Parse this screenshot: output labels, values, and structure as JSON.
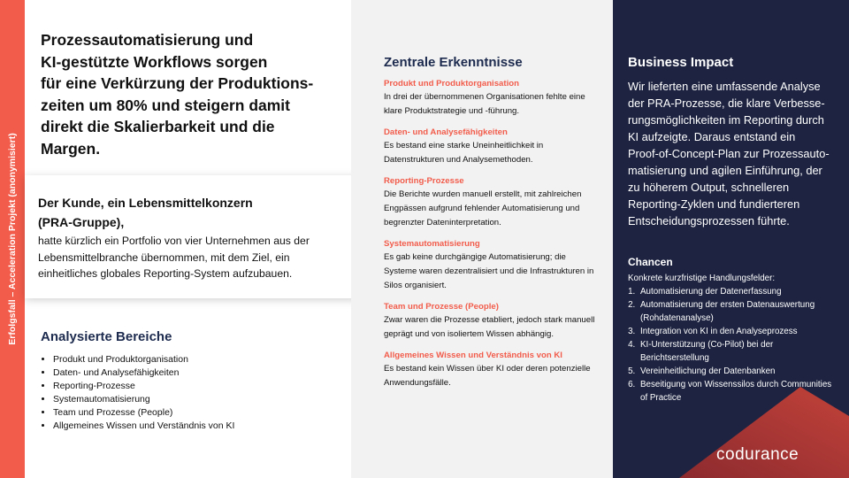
{
  "sidebar_label": "Erfolgsfall – Acceleration Projekt (anonymisiert)",
  "headline": [
    "Prozessautomatisierung und",
    "KI-gestützte Workflows sorgen",
    "für eine Verkürzung der Produktions-",
    "zeiten um 80% und steigern damit",
    "direkt die Skalierbarkeit und die",
    "Margen."
  ],
  "client": {
    "title": "Der Kunde, ein Lebensmittelkonzern",
    "subtitle": "(PRA-Gruppe),",
    "text": "hatte kürzlich ein Portfolio von vier Unternehmen aus der Lebensmittelbranche übernommen, mit dem Ziel, ein einheitliches globales Reporting-System aufzubauen."
  },
  "analyzed": {
    "title": "Analysierte Bereiche",
    "items": [
      "Produkt und Produktorganisation",
      "Daten- und Analysefähigkeiten",
      "Reporting-Prozesse",
      "Systemautomatisierung",
      "Team und Prozesse (People)",
      "Allgemeines Wissen und Verständnis von KI"
    ]
  },
  "findings": {
    "title": "Zentrale Erkenntnisse",
    "items": [
      {
        "title": "Produkt und Produktorganisation",
        "text": "In drei der übernommenen Organisationen fehlte eine klare Produktstrategie und -führung."
      },
      {
        "title": "Daten- und Analysefähigkeiten",
        "text": "Es bestand eine starke Uneinheitlichkeit in Datenstrukturen und Analysemethoden."
      },
      {
        "title": "Reporting-Prozesse",
        "text": "Die Berichte wurden manuell erstellt, mit zahlreichen Engpässen aufgrund fehlender Automatisierung und begrenzter Dateninterpretation."
      },
      {
        "title": "Systemautomatisierung",
        "text": "Es gab keine durchgängige Automatisierung; die Systeme waren dezentralisiert und die Infrastrukturen in Silos organisiert."
      },
      {
        "title": "Team und Prozesse (People)",
        "text": "Zwar waren die Prozesse etabliert, jedoch stark manuell geprägt und von isoliertem Wissen abhängig."
      },
      {
        "title": "Allgemeines Wissen und Verständnis von KI",
        "text": "Es bestand kein Wissen über KI oder deren potenzielle Anwendungsfälle."
      }
    ]
  },
  "impact": {
    "title": "Business Impact",
    "lines": [
      "Wir lieferten eine umfassende Analyse",
      "der PRA-Prozesse, die klare Verbesse-",
      "rungsmöglichkeiten im Reporting durch",
      "KI aufzeigte. Daraus entstand ein",
      "Proof-of-Concept-Plan zur Prozessauto-",
      "matisierung und agilen Einführung, der",
      "zu höherem Output, schnelleren",
      "Reporting-Zyklen und fundierteren",
      "Entscheidungsprozessen führte."
    ]
  },
  "chances": {
    "title": "Chancen",
    "intro": "Konkrete kurzfristige Handlungsfelder:",
    "items": [
      "Automatisierung der Datenerfassung",
      "Automatisierung der ersten Datenauswertung (Rohdatenanalyse)",
      "Integration von KI in den Analyseprozess",
      "KI-Unterstützung (Co-Pilot) bei der Berichtserstellung",
      "Vereinheitlichung der Datenbanken",
      "Beseitigung von Wissenssilos durch Communities of Practice"
    ]
  },
  "logo": "codurance"
}
